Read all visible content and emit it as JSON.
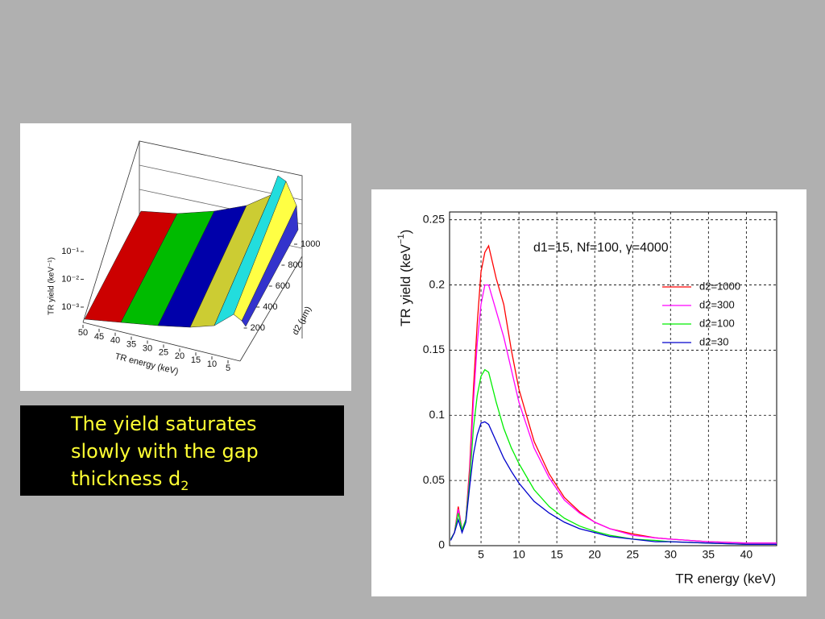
{
  "chart_data": [
    {
      "type": "surface",
      "x_label": "TR energy (keV)",
      "y_label": "d2 (μm)",
      "z_label": "TR yield (keV⁻¹)",
      "xlim": [
        50,
        5
      ],
      "xticks": [
        50,
        45,
        40,
        35,
        30,
        25,
        20,
        15,
        10,
        5
      ],
      "ylim": [
        0,
        1000
      ],
      "yticks": [
        200,
        400,
        600,
        800,
        1000
      ],
      "zlog": true,
      "zlim": [
        0.001,
        0.1
      ],
      "zticks": [
        {
          "value": 0.1,
          "label": "10⁻¹"
        },
        {
          "value": 0.01,
          "label": "10⁻²"
        },
        {
          "value": 0.001,
          "label": "10⁻³"
        }
      ]
    },
    {
      "type": "line",
      "annotation": "d1=15, Nf=100, γ=4000",
      "x_label": "TR energy (keV)",
      "y_label": "TR yield (keV",
      "y_label_sup": "−1",
      "y_label_end": ")",
      "x": [
        1,
        1.5,
        2,
        2.5,
        3,
        3.5,
        4,
        4.5,
        5,
        5.5,
        6,
        7,
        8,
        9,
        10,
        12,
        14,
        16,
        18,
        20,
        22,
        25,
        28,
        30,
        35,
        40,
        44
      ],
      "series": [
        {
          "name": "d2=1000",
          "color": "#ff0000",
          "values": [
            0.005,
            0.01,
            0.03,
            0.012,
            0.02,
            0.06,
            0.12,
            0.17,
            0.21,
            0.225,
            0.23,
            0.205,
            0.185,
            0.15,
            0.12,
            0.08,
            0.055,
            0.037,
            0.026,
            0.018,
            0.013,
            0.009,
            0.006,
            0.005,
            0.003,
            0.002,
            0.002
          ]
        },
        {
          "name": "d2=300",
          "color": "#ff00ff",
          "values": [
            0.005,
            0.01,
            0.028,
            0.012,
            0.02,
            0.055,
            0.11,
            0.155,
            0.185,
            0.2,
            0.2,
            0.18,
            0.16,
            0.135,
            0.11,
            0.075,
            0.052,
            0.035,
            0.025,
            0.018,
            0.013,
            0.008,
            0.006,
            0.005,
            0.003,
            0.002,
            0.002
          ]
        },
        {
          "name": "d2=100",
          "color": "#00ee00",
          "values": [
            0.005,
            0.01,
            0.025,
            0.012,
            0.02,
            0.05,
            0.09,
            0.115,
            0.13,
            0.135,
            0.133,
            0.11,
            0.09,
            0.075,
            0.063,
            0.043,
            0.03,
            0.021,
            0.015,
            0.011,
            0.008,
            0.005,
            0.004,
            0.003,
            0.002,
            0.001,
            0.001
          ]
        },
        {
          "name": "d2=30",
          "color": "#0000cc",
          "values": [
            0.004,
            0.01,
            0.02,
            0.01,
            0.018,
            0.045,
            0.07,
            0.085,
            0.094,
            0.095,
            0.093,
            0.08,
            0.067,
            0.057,
            0.048,
            0.034,
            0.025,
            0.018,
            0.013,
            0.01,
            0.007,
            0.005,
            0.003,
            0.003,
            0.002,
            0.001,
            0.001
          ]
        }
      ],
      "xlim": [
        0.85,
        44
      ],
      "xticks": [
        5,
        10,
        15,
        20,
        25,
        30,
        35,
        40
      ],
      "ylim": [
        0,
        0.256
      ],
      "yticks": [
        0,
        0.05,
        0.1,
        0.15,
        0.2,
        0.25
      ],
      "grid": true,
      "legend": "upper-right"
    }
  ],
  "caption": {
    "lines": [
      "The yield saturates",
      "slowly with the gap",
      "thickness d"
    ],
    "subscript": "2"
  }
}
